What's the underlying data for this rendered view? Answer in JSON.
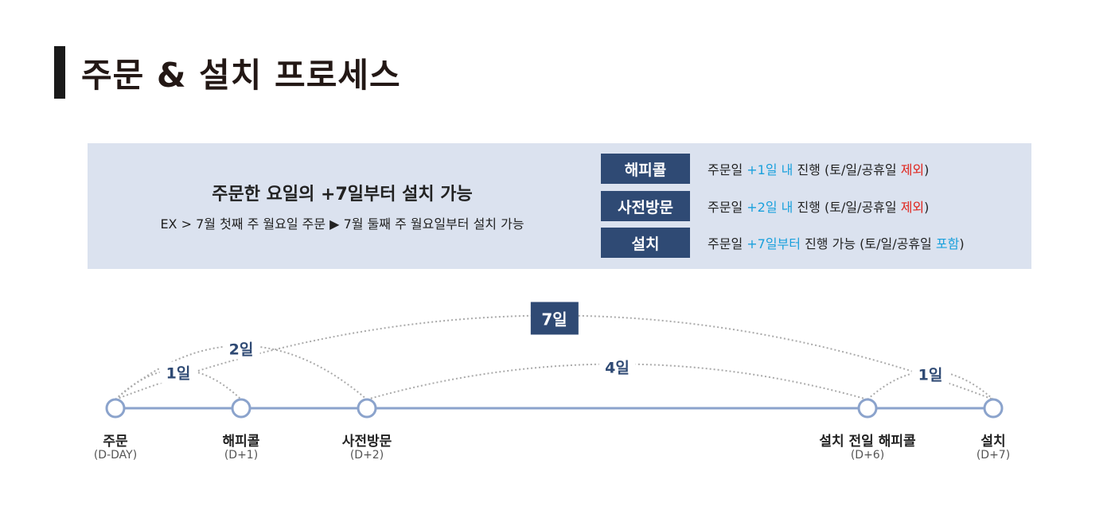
{
  "title": "주문 & 설치 프로세스",
  "info": {
    "main": "주문한 요일의 +7일부터 설치 가능",
    "example": "EX >  7월 첫째 주 월요일 주문 ▶ 7월 둘째 주 월요일부터 설치 가능"
  },
  "rules": [
    {
      "label": "해피콜",
      "pre": "주문일 ",
      "highlight": "+1일 내",
      "mid": " 진행 (토/일/공휴일 ",
      "tag": "제외",
      "post": ")"
    },
    {
      "label": "사전방문",
      "pre": "주문일 ",
      "highlight": "+2일 내",
      "mid": " 진행 (토/일/공휴일 ",
      "tag": "제외",
      "post": ")"
    },
    {
      "label": "설치",
      "pre": "주문일 ",
      "highlight": "+7일부터",
      "mid": " 진행 가능 (토/일/공휴일 ",
      "tag": "포함",
      "post": ")"
    }
  ],
  "timeline": {
    "nodes": [
      {
        "label": "주문",
        "sub": "(D-DAY)",
        "day": 0
      },
      {
        "label": "해피콜",
        "sub": "(D+1)",
        "day": 1
      },
      {
        "label": "사전방문",
        "sub": "(D+2)",
        "day": 2
      },
      {
        "label": "설치 전일 해피콜",
        "sub": "(D+6)",
        "day": 6
      },
      {
        "label": "설치",
        "sub": "(D+7)",
        "day": 7
      }
    ],
    "arcs": [
      {
        "from": 0,
        "to": 1,
        "label": "1일"
      },
      {
        "from": 0,
        "to": 2,
        "label": "2일"
      },
      {
        "from": 2,
        "to": 3,
        "label": "4일"
      },
      {
        "from": 3,
        "to": 4,
        "label": "1일"
      },
      {
        "from": 0,
        "to": 4,
        "label": "7일",
        "boxed": true
      }
    ]
  },
  "colors": {
    "accent": "#2f4a74",
    "highlight_blue": "#1aa0dc",
    "highlight_red": "#e0241c",
    "line": "#8ba3cc",
    "box_bg": "#dbe2ef"
  }
}
